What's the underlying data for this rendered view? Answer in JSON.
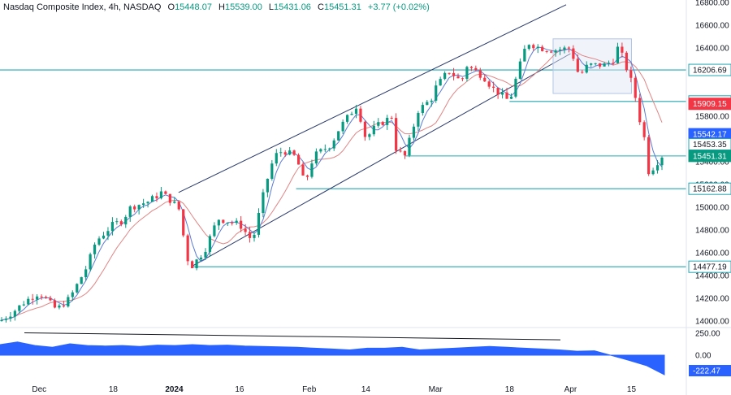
{
  "header": {
    "title": "Nasdaq Composite Index, 4h, NASDAQ",
    "open_label": "O",
    "open": "15448.07",
    "high_label": "H",
    "high": "15539.00",
    "low_label": "L",
    "low": "15431.06",
    "close_label": "C",
    "close": "15451.31",
    "change": "+3.77 (+0.02%)"
  },
  "colors": {
    "up": "#089981",
    "down": "#f23645",
    "level_line": "#22a7b4",
    "channel_line": "#2a3a6b",
    "ma_fast": "#5b7bd5",
    "ma_slow": "#e08585",
    "oscillator": "#2962ff",
    "box": "#b2c5e6"
  },
  "chart_data": [
    {
      "type": "candlestick",
      "title": "Nasdaq Composite Index, 4h, NASDAQ",
      "ylim": [
        13900,
        16800
      ],
      "y_ticks": [
        "16800.00",
        "16600.00",
        "16400.00",
        "15800.00",
        "15400.00",
        "15200.00",
        "15000.00",
        "14800.00",
        "14600.00",
        "14400.00",
        "14200.00",
        "14000.00"
      ],
      "x_ticks": [
        "Dec",
        "18",
        "2024",
        "16",
        "Feb",
        "14",
        "Mar",
        "18",
        "Apr",
        "15"
      ],
      "horizontal_levels": [
        "16206.69",
        "15929.85",
        "15162.88",
        "14477.19"
      ],
      "price_tags": [
        {
          "value": "15909.15",
          "color": "#f23645"
        },
        {
          "value": "15542.17",
          "color": "#2962ff"
        },
        {
          "value": "15453.35",
          "color": "#22a7b4"
        },
        {
          "value": "15451.31",
          "color": "#089981"
        }
      ],
      "trend_channel": {
        "upper": [
          {
            "x": "Jan 2",
            "y": 15130
          },
          {
            "x": "Mar 31",
            "y": 16780
          }
        ],
        "lower": [
          {
            "x": "Jan 5",
            "y": 14480
          },
          {
            "x": "Apr 1",
            "y": 16350
          }
        ]
      },
      "price_path": [
        {
          "x": "Nov 22",
          "y": 14000
        },
        {
          "x": "Nov 25",
          "y": 14080
        },
        {
          "x": "Nov 28",
          "y": 14180
        },
        {
          "x": "Dec 1",
          "y": 14250
        },
        {
          "x": "Dec 5",
          "y": 14100
        },
        {
          "x": "Dec 8",
          "y": 14200
        },
        {
          "x": "Dec 12",
          "y": 14480
        },
        {
          "x": "Dec 14",
          "y": 14700
        },
        {
          "x": "Dec 18",
          "y": 14850
        },
        {
          "x": "Dec 20",
          "y": 14880
        },
        {
          "x": "Dec 22",
          "y": 15000
        },
        {
          "x": "Dec 26",
          "y": 15050
        },
        {
          "x": "Dec 28",
          "y": 15100
        },
        {
          "x": "Dec 29",
          "y": 15130
        },
        {
          "x": "Jan 2",
          "y": 15000
        },
        {
          "x": "Jan 4",
          "y": 14550
        },
        {
          "x": "Jan 5",
          "y": 14480
        },
        {
          "x": "Jan 8",
          "y": 14620
        },
        {
          "x": "Jan 11",
          "y": 14900
        },
        {
          "x": "Jan 16",
          "y": 14850
        },
        {
          "x": "Jan 19",
          "y": 14700
        },
        {
          "x": "Jan 22",
          "y": 15200
        },
        {
          "x": "Jan 24",
          "y": 15450
        },
        {
          "x": "Jan 26",
          "y": 15500
        },
        {
          "x": "Jan 29",
          "y": 15440
        },
        {
          "x": "Jan 31",
          "y": 15200
        },
        {
          "x": "Feb 2",
          "y": 15450
        },
        {
          "x": "Feb 6",
          "y": 15550
        },
        {
          "x": "Feb 8",
          "y": 15700
        },
        {
          "x": "Feb 12",
          "y": 15900
        },
        {
          "x": "Feb 14",
          "y": 15600
        },
        {
          "x": "Feb 16",
          "y": 15700
        },
        {
          "x": "Feb 20",
          "y": 15800
        },
        {
          "x": "Feb 21",
          "y": 15500
        },
        {
          "x": "Feb 23",
          "y": 15450
        },
        {
          "x": "Feb 26",
          "y": 15850
        },
        {
          "x": "Feb 29",
          "y": 15950
        },
        {
          "x": "Mar 1",
          "y": 16050
        },
        {
          "x": "Mar 4",
          "y": 16200
        },
        {
          "x": "Mar 7",
          "y": 16100
        },
        {
          "x": "Mar 8",
          "y": 16250
        },
        {
          "x": "Mar 12",
          "y": 16150
        },
        {
          "x": "Mar 14",
          "y": 16050
        },
        {
          "x": "Mar 18",
          "y": 15930
        },
        {
          "x": "Mar 20",
          "y": 16200
        },
        {
          "x": "Mar 22",
          "y": 16450
        },
        {
          "x": "Mar 25",
          "y": 16400
        },
        {
          "x": "Mar 28",
          "y": 16380
        },
        {
          "x": "Apr 1",
          "y": 16400
        },
        {
          "x": "Apr 3",
          "y": 16150
        },
        {
          "x": "Apr 5",
          "y": 16250
        },
        {
          "x": "Apr 9",
          "y": 16250
        },
        {
          "x": "Apr 11",
          "y": 16300
        },
        {
          "x": "Apr 12",
          "y": 16420
        },
        {
          "x": "Apr 15",
          "y": 16100
        },
        {
          "x": "Apr 16",
          "y": 15950
        },
        {
          "x": "Apr 17",
          "y": 15750
        },
        {
          "x": "Apr 18",
          "y": 15600
        },
        {
          "x": "Apr 19",
          "y": 15300
        },
        {
          "x": "Apr 22",
          "y": 15451
        }
      ]
    },
    {
      "type": "area",
      "ylim": [
        -230,
        270
      ],
      "y_ticks": [
        "250.00",
        "0.00"
      ],
      "last_value": "-222.47",
      "series": [
        {
          "values": [
            120,
            150,
            110,
            90,
            130,
            110,
            105,
            110,
            100,
            115,
            110,
            120,
            110,
            115,
            105,
            100,
            95,
            90,
            80,
            70,
            60,
            80,
            80,
            90,
            60,
            70,
            80,
            90,
            100,
            90,
            80,
            70,
            60,
            45,
            50,
            -5,
            -60,
            -120,
            -222
          ]
        }
      ]
    }
  ]
}
